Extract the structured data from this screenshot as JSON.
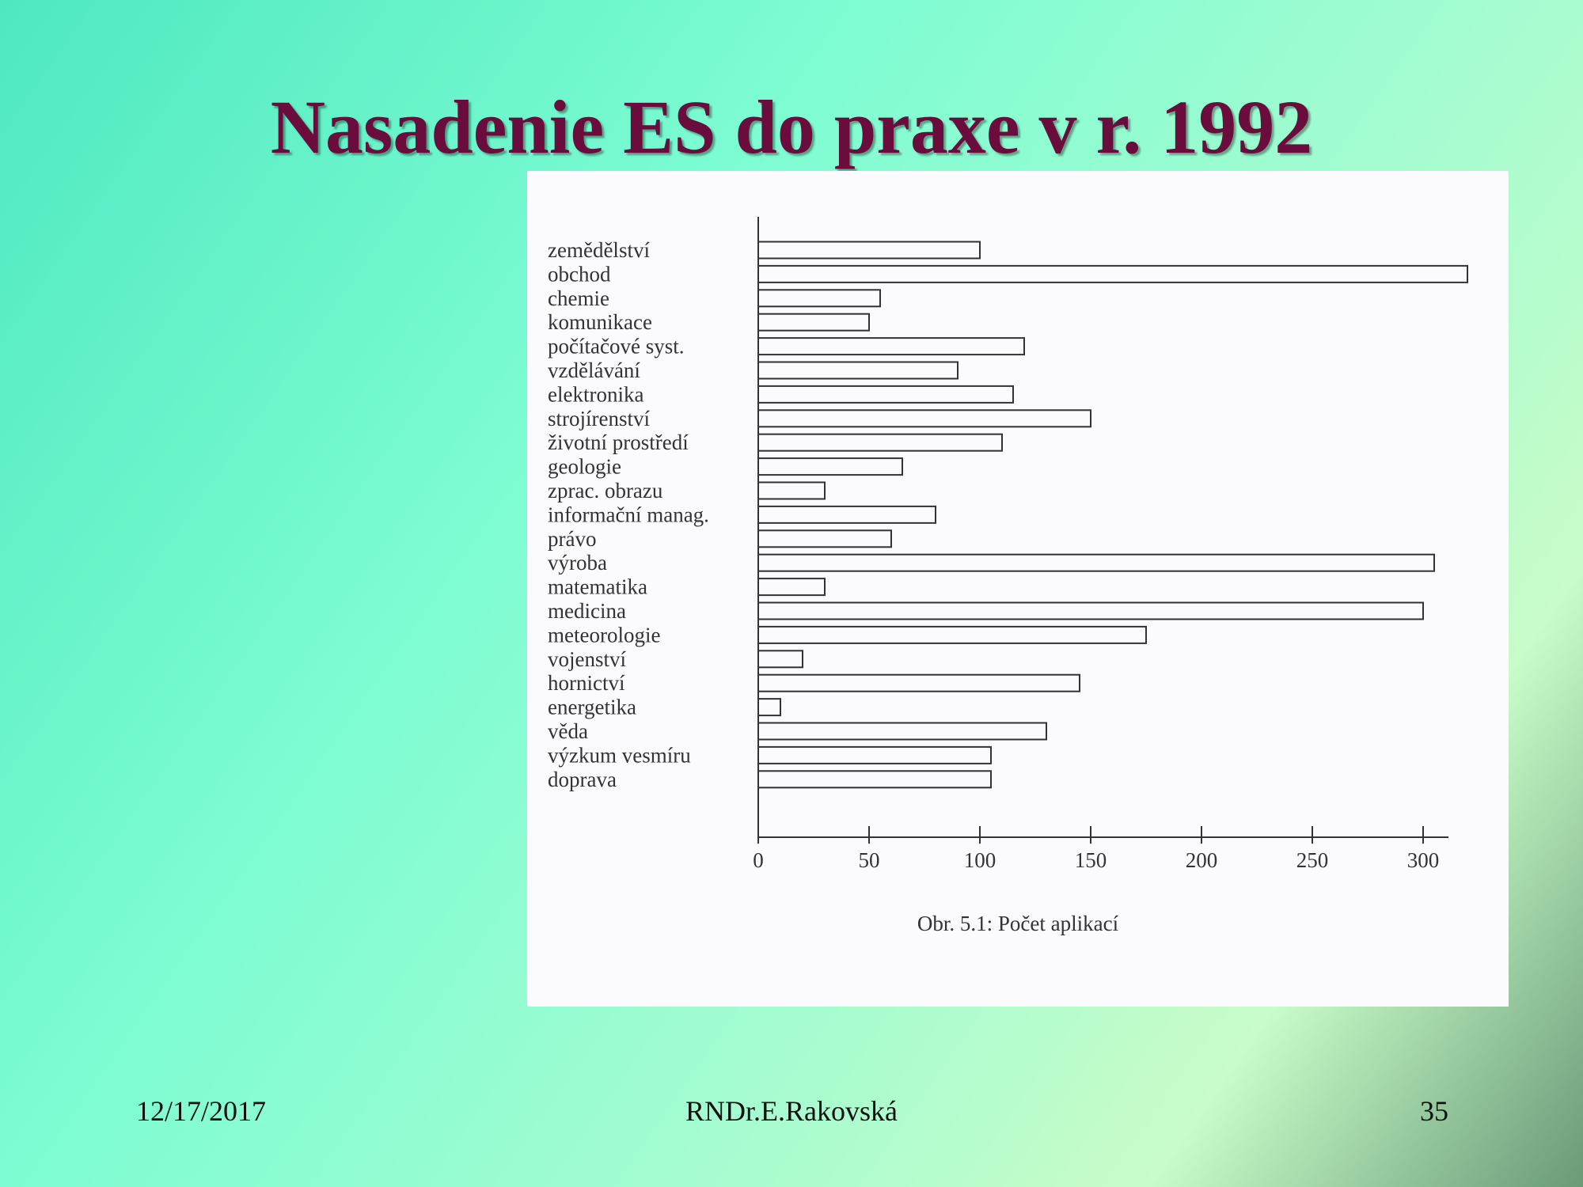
{
  "slide": {
    "title": "Nasadenie ES do praxe v r. 1992",
    "footer_date": "12/17/2017",
    "footer_author": "RNDr.E.Rakovská",
    "page_number": "35"
  },
  "colors": {
    "title": "#6a0d3c",
    "bar_stroke": "#333333",
    "paper": "#fbfafc"
  },
  "chart_data": {
    "type": "bar",
    "orientation": "horizontal",
    "caption": "Obr. 5.1: Počet aplikací",
    "categories": [
      "zemědělství",
      "obchod",
      "chemie",
      "komunikace",
      "počítačové syst.",
      "vzdělávání",
      "elektronika",
      "strojírenství",
      "životní prostředí",
      "geologie",
      "zprac. obrazu",
      "informační manag.",
      "právo",
      "výroba",
      "matematika",
      "medicina",
      "meteorologie",
      "vojenství",
      "hornictví",
      "energetika",
      "věda",
      "výzkum vesmíru",
      "doprava"
    ],
    "values": [
      100,
      320,
      55,
      50,
      120,
      90,
      115,
      150,
      110,
      65,
      30,
      80,
      60,
      305,
      30,
      300,
      175,
      20,
      145,
      10,
      130,
      105,
      105
    ],
    "xlim": [
      0,
      310
    ],
    "xticks": [
      0,
      50,
      100,
      150,
      200,
      250,
      300
    ],
    "xlabel": "",
    "ylabel": "",
    "grid": false,
    "legend": "none"
  }
}
